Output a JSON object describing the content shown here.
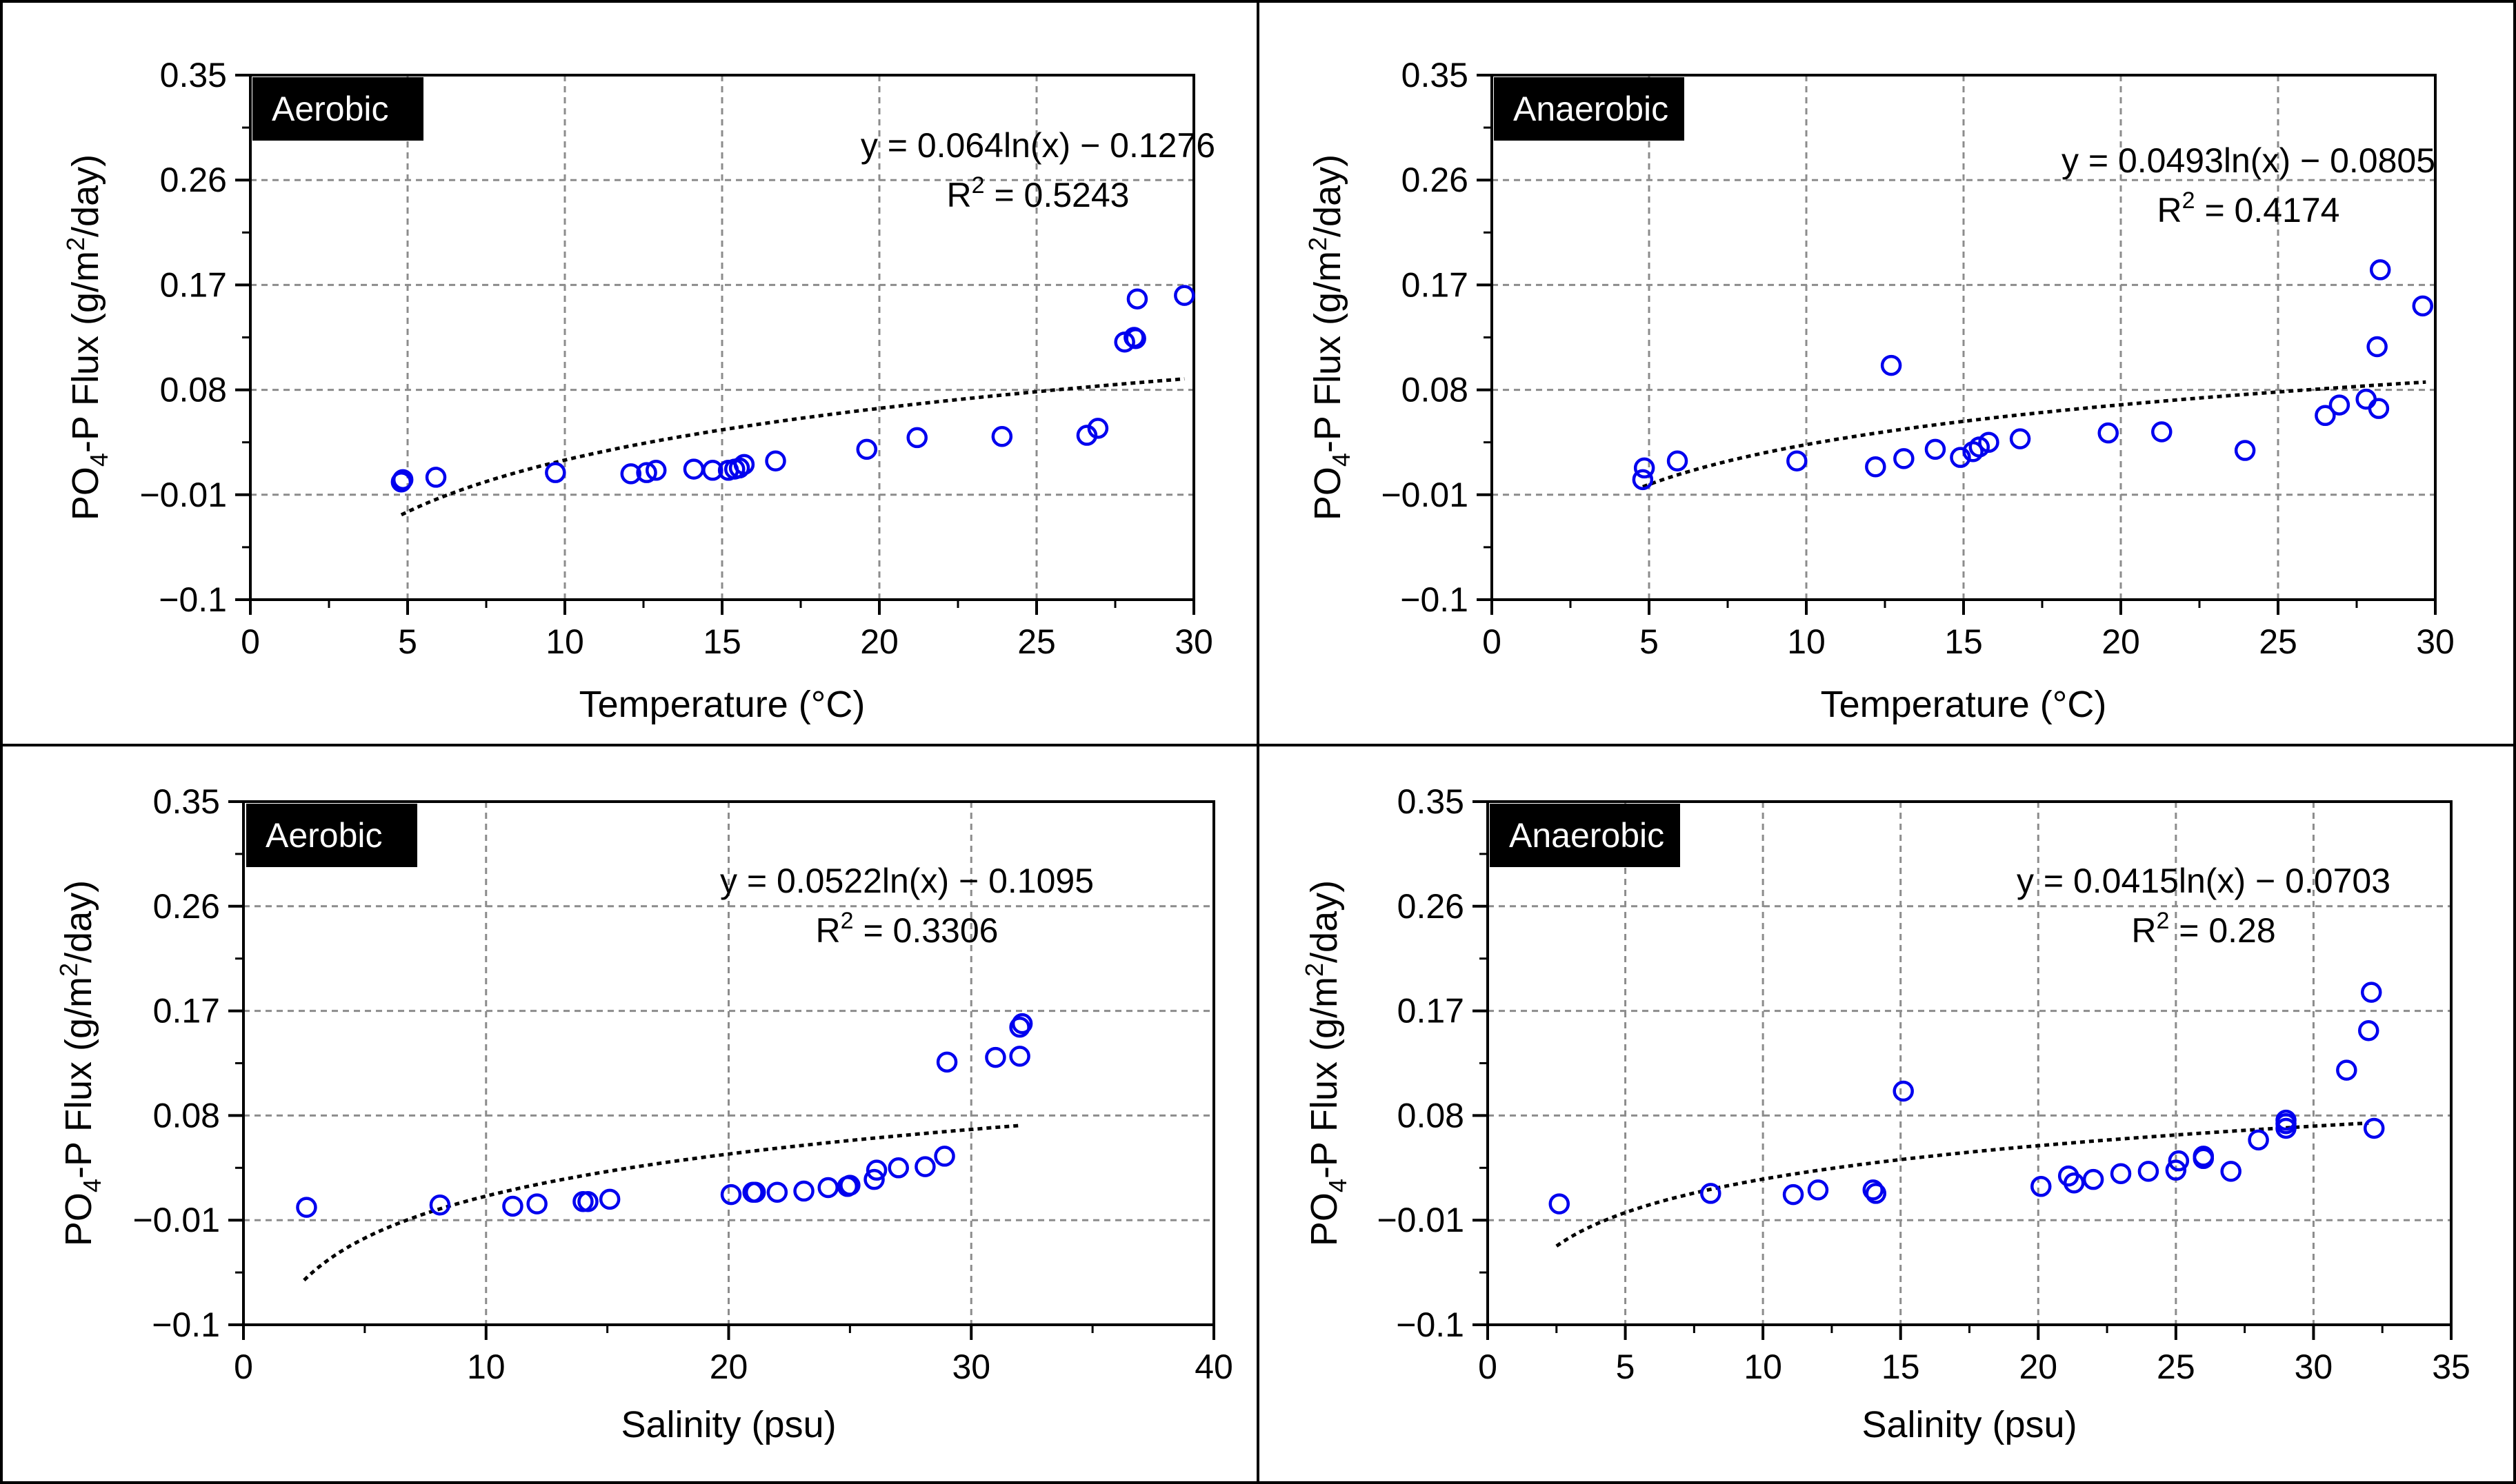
{
  "chart_data": [
    {
      "type": "scatter",
      "panel_label": "Aerobic",
      "xlabel": "Temperature (°C)",
      "ylabel_parts": [
        "PO",
        "4",
        "-P Flux (g/m",
        "2",
        "/day)"
      ],
      "xlim": [
        0,
        30
      ],
      "ylim": [
        -0.1,
        0.35
      ],
      "xticks": [
        0,
        5,
        10,
        15,
        20,
        25,
        30
      ],
      "xtick_labels": [
        "0",
        "5",
        "10",
        "15",
        "20",
        "25",
        "30"
      ],
      "yticks": [
        -0.1,
        -0.01,
        0.08,
        0.17,
        0.26,
        0.35
      ],
      "ytick_labels": [
        "−0.1",
        "−0.01",
        "0.08",
        "0.17",
        "0.26",
        "0.35"
      ],
      "grid": true,
      "equation": "y = 0.064ln(x) − 0.1276",
      "r2_parts": [
        "R",
        "2",
        " = 0.5243"
      ],
      "trendline": {
        "form": "log",
        "a": 0.064,
        "b": -0.1276,
        "x_range": [
          4.8,
          29.7
        ]
      },
      "series": [
        {
          "name": "Aerobic",
          "x": [
            4.8,
            4.85,
            5.9,
            9.7,
            12.1,
            12.6,
            12.9,
            14.1,
            14.7,
            15.2,
            15.4,
            15.55,
            15.7,
            16.7,
            19.6,
            21.2,
            23.9,
            26.6,
            26.95,
            27.8,
            28.1,
            28.15,
            28.2,
            29.7
          ],
          "y": [
            0.001,
            0.003,
            0.005,
            0.009,
            0.008,
            0.009,
            0.011,
            0.012,
            0.011,
            0.011,
            0.012,
            0.013,
            0.016,
            0.019,
            0.029,
            0.039,
            0.04,
            0.041,
            0.047,
            0.121,
            0.125,
            0.124,
            0.158,
            0.161
          ]
        }
      ]
    },
    {
      "type": "scatter",
      "panel_label": "Anaerobic",
      "xlabel": "Temperature (°C)",
      "ylabel_parts": [
        "PO",
        "4",
        "-P Flux (g/m",
        "2",
        "/day)"
      ],
      "xlim": [
        0,
        30
      ],
      "ylim": [
        -0.1,
        0.35
      ],
      "xticks": [
        0,
        5,
        10,
        15,
        20,
        25,
        30
      ],
      "xtick_labels": [
        "0",
        "5",
        "10",
        "15",
        "20",
        "25",
        "30"
      ],
      "yticks": [
        -0.1,
        -0.01,
        0.08,
        0.17,
        0.26,
        0.35
      ],
      "ytick_labels": [
        "−0.1",
        "−0.01",
        "0.08",
        "0.17",
        "0.26",
        "0.35"
      ],
      "grid": true,
      "equation": "y = 0.0493ln(x) − 0.0805",
      "r2_parts": [
        "R",
        "2",
        " = 0.4174"
      ],
      "trendline": {
        "form": "log",
        "a": 0.0493,
        "b": -0.0805,
        "x_range": [
          4.8,
          29.7
        ]
      },
      "series": [
        {
          "name": "Anaerobic",
          "x": [
            4.8,
            4.85,
            5.9,
            9.7,
            12.2,
            12.7,
            13.1,
            14.1,
            14.9,
            15.3,
            15.5,
            15.8,
            16.8,
            19.6,
            21.3,
            23.95,
            26.5,
            26.95,
            27.8,
            28.15,
            28.2,
            28.25,
            29.6
          ],
          "y": [
            0.003,
            0.013,
            0.019,
            0.019,
            0.014,
            0.101,
            0.021,
            0.029,
            0.022,
            0.027,
            0.031,
            0.035,
            0.038,
            0.043,
            0.044,
            0.028,
            0.058,
            0.067,
            0.072,
            0.117,
            0.064,
            0.183,
            0.152
          ]
        }
      ]
    },
    {
      "type": "scatter",
      "panel_label": "Aerobic",
      "xlabel": "Salinity (psu)",
      "ylabel_parts": [
        "PO",
        "4",
        "-P Flux (g/m",
        "2",
        "/day)"
      ],
      "xlim": [
        0,
        40
      ],
      "ylim": [
        -0.1,
        0.35
      ],
      "xticks": [
        0,
        10,
        20,
        30,
        40
      ],
      "xtick_labels": [
        "0",
        "10",
        "20",
        "30",
        "40"
      ],
      "yticks": [
        -0.1,
        -0.01,
        0.08,
        0.17,
        0.26,
        0.35
      ],
      "ytick_labels": [
        "−0.1",
        "−0.01",
        "0.08",
        "0.17",
        "0.26",
        "0.35"
      ],
      "grid": true,
      "equation": "y = 0.0522ln(x) − 0.1095",
      "r2_parts": [
        "R",
        "2",
        " = 0.3306"
      ],
      "trendline": {
        "form": "log",
        "a": 0.0522,
        "b": -0.1095,
        "x_range": [
          2.5,
          32
        ]
      },
      "series": [
        {
          "name": "Aerobic",
          "x": [
            2.6,
            8.1,
            11.1,
            12.1,
            14.0,
            14.2,
            15.1,
            20.1,
            21.0,
            21.1,
            22.0,
            23.1,
            24.1,
            24.9,
            25.0,
            26.0,
            26.1,
            27.0,
            28.1,
            28.9,
            29.0,
            31.0,
            32.0,
            32.0,
            32.1
          ],
          "y": [
            0.001,
            0.003,
            0.002,
            0.004,
            0.006,
            0.006,
            0.008,
            0.012,
            0.014,
            0.014,
            0.014,
            0.015,
            0.018,
            0.019,
            0.02,
            0.025,
            0.033,
            0.035,
            0.036,
            0.045,
            0.126,
            0.13,
            0.131,
            0.156,
            0.159
          ]
        }
      ]
    },
    {
      "type": "scatter",
      "panel_label": "Anaerobic",
      "xlabel": "Salinity (psu)",
      "ylabel_parts": [
        "PO",
        "4",
        "-P Flux (g/m",
        "2",
        "/day)"
      ],
      "xlim": [
        0,
        35
      ],
      "ylim": [
        -0.1,
        0.35
      ],
      "xticks": [
        0,
        5,
        10,
        15,
        20,
        25,
        30,
        35
      ],
      "xtick_labels": [
        "0",
        "5",
        "10",
        "15",
        "20",
        "25",
        "30",
        "35"
      ],
      "yticks": [
        -0.1,
        -0.01,
        0.08,
        0.17,
        0.26,
        0.35
      ],
      "ytick_labels": [
        "−0.1",
        "−0.01",
        "0.08",
        "0.17",
        "0.26",
        "0.35"
      ],
      "grid": true,
      "equation": "y = 0.0415ln(x) − 0.0703",
      "r2_parts": [
        "R",
        "2",
        " = 0.28"
      ],
      "trendline": {
        "form": "log",
        "a": 0.0415,
        "b": -0.0703,
        "x_range": [
          2.5,
          32
        ]
      },
      "series": [
        {
          "name": "Anaerobic",
          "x": [
            2.6,
            8.1,
            11.1,
            12.0,
            14.0,
            14.1,
            15.1,
            20.1,
            21.1,
            21.3,
            22.0,
            23.0,
            24.0,
            25.0,
            25.1,
            26.0,
            26.0,
            27.0,
            28.0,
            29.0,
            29.0,
            29.0,
            31.2,
            32.0,
            32.1,
            32.2
          ],
          "y": [
            0.004,
            0.013,
            0.012,
            0.016,
            0.016,
            0.013,
            0.101,
            0.019,
            0.028,
            0.022,
            0.025,
            0.03,
            0.032,
            0.033,
            0.041,
            0.043,
            0.045,
            0.032,
            0.059,
            0.069,
            0.073,
            0.076,
            0.119,
            0.153,
            0.186,
            0.069
          ]
        }
      ]
    }
  ],
  "style": {
    "marker_color": "#0000ee",
    "trend_color": "#000000",
    "grid_color": "#8c8c8c",
    "badge_bg": "#000000",
    "badge_text": "#ffffff",
    "frame_color": "#000000"
  }
}
